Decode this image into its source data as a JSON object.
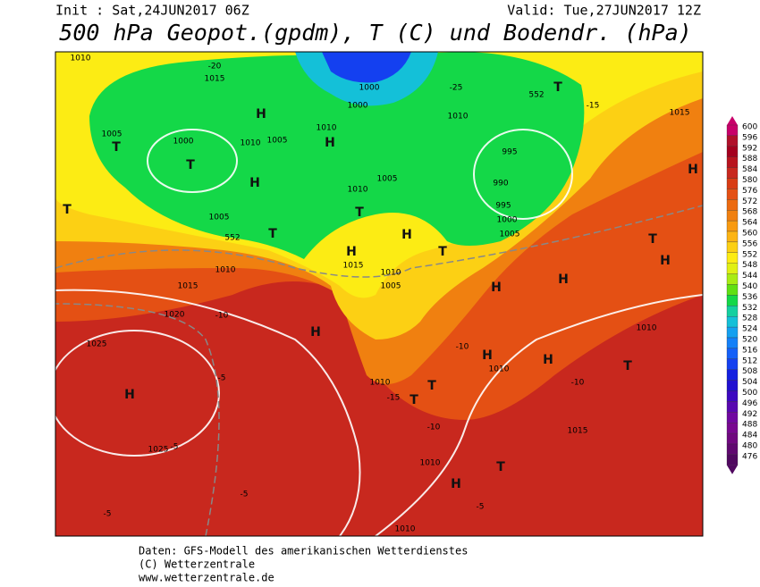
{
  "header": {
    "init": "Init : Sat,24JUN2017 06Z",
    "valid": "Valid: Tue,27JUN2017 12Z",
    "title": "500 hPa Geopot.(gpdm), T (C) und Bodendr. (hPa)"
  },
  "map": {
    "labels": [
      "1010",
      "1015",
      "1005",
      "1000",
      "1010",
      "1005",
      "1010",
      "1000",
      "1000",
      "1010",
      "1005",
      "1010",
      "995",
      "990",
      "995",
      "1000",
      "1005",
      "1005",
      "1010",
      "1015",
      "1020",
      "1025",
      "1025",
      "1015",
      "1010",
      "1005",
      "1010",
      "1010",
      "1010",
      "1015",
      "1010",
      "1015",
      "1010",
      "552",
      "552",
      "-20",
      "-25",
      "-15",
      "-10",
      "-5",
      "-5",
      "-5",
      "-5",
      "-10",
      "-15",
      "-10",
      "-10",
      "-5",
      "H",
      "H",
      "H",
      "H",
      "H",
      "H",
      "H",
      "H",
      "H",
      "H",
      "H",
      "H",
      "H",
      "H",
      "T",
      "T",
      "T",
      "T",
      "T",
      "T",
      "T",
      "T",
      "T",
      "T",
      "T",
      "T"
    ]
  },
  "colorbar": {
    "levels": [
      600,
      596,
      592,
      588,
      584,
      580,
      576,
      572,
      568,
      564,
      560,
      556,
      552,
      548,
      544,
      540,
      536,
      532,
      528,
      524,
      520,
      516,
      512,
      508,
      504,
      500,
      496,
      492,
      488,
      484,
      480,
      476
    ],
    "colors": [
      "#c8006a",
      "#b0102a",
      "#a4001e",
      "#b8141e",
      "#c8281e",
      "#d83c14",
      "#e45014",
      "#ec6a10",
      "#f08010",
      "#f89a10",
      "#fcb414",
      "#fcd014",
      "#fcec14",
      "#e0f014",
      "#a8ec14",
      "#60e014",
      "#14d848",
      "#14d0a0",
      "#14c0d8",
      "#14a0f0",
      "#1480f8",
      "#1460f8",
      "#1440f0",
      "#1420e0",
      "#2010d0",
      "#3c08c0",
      "#5808b0",
      "#7008a0",
      "#780890",
      "#700880",
      "#600870",
      "#500860"
    ]
  },
  "footer": {
    "source": "Daten: GFS-Modell des amerikanischen Wetterdienstes",
    "copyright": "(C) Wetterzentrale",
    "url": "www.wetterzentrale.de"
  }
}
